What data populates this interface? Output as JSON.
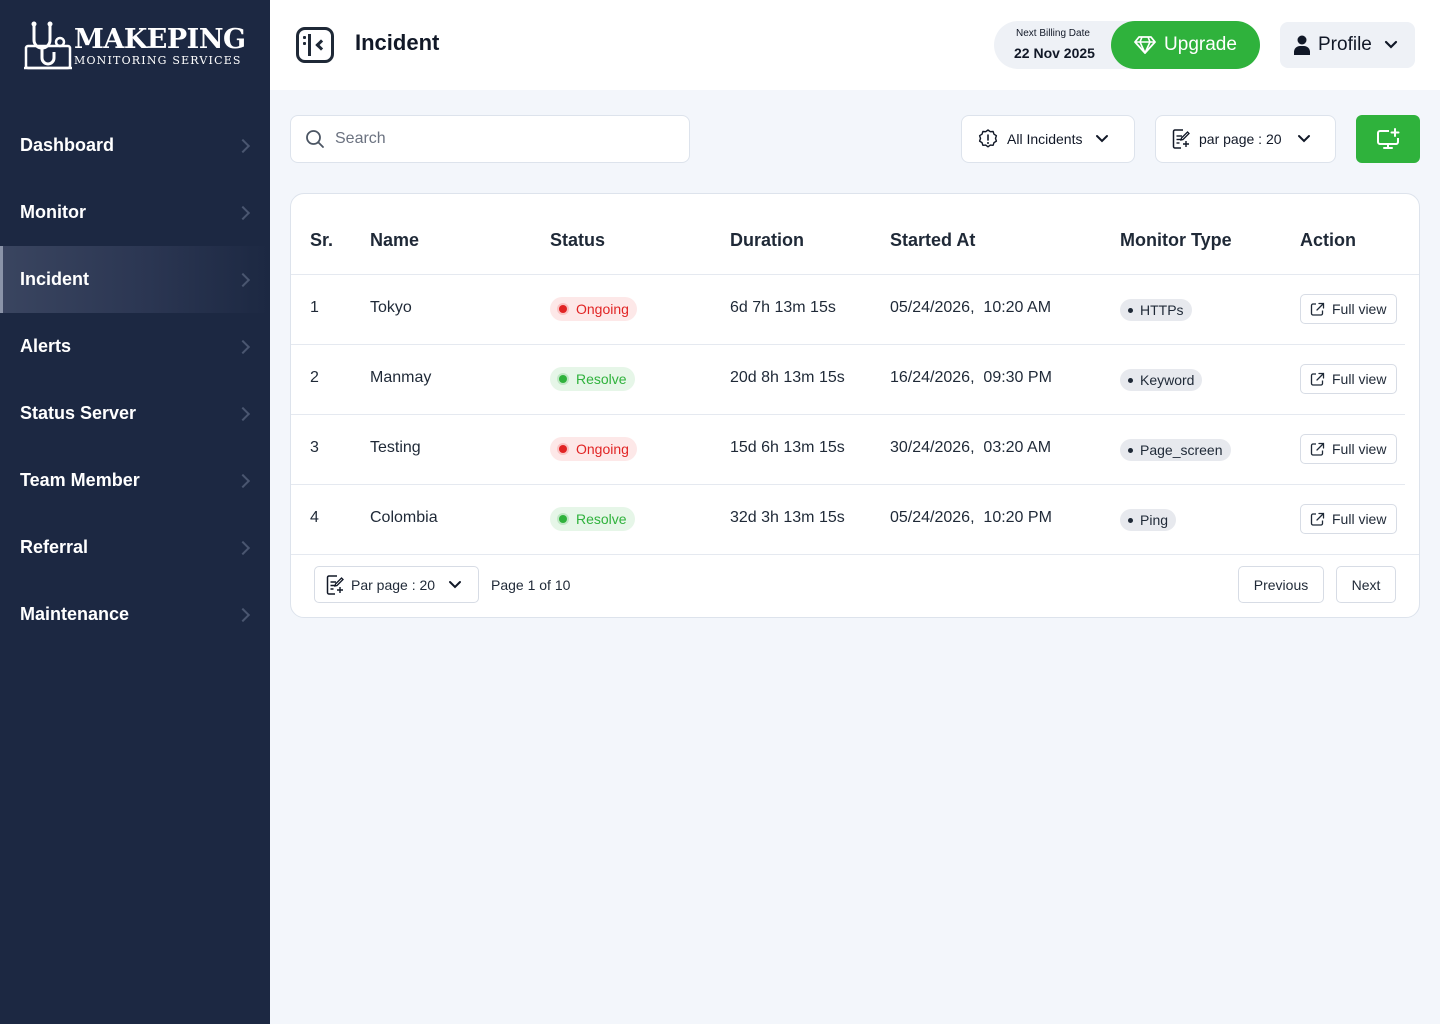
{
  "brand": {
    "name": "MAKEPING",
    "tagline": "MONITORING SERVICES"
  },
  "sidebar": {
    "items": [
      {
        "label": "Dashboard",
        "active": false
      },
      {
        "label": "Monitor",
        "active": false
      },
      {
        "label": "Incident",
        "active": true
      },
      {
        "label": "Alerts",
        "active": false
      },
      {
        "label": "Status Server",
        "active": false
      },
      {
        "label": "Team Member",
        "active": false
      },
      {
        "label": "Referral",
        "active": false
      },
      {
        "label": "Maintenance",
        "active": false
      }
    ]
  },
  "header": {
    "title": "Incident",
    "billing_label": "Next Billing Date",
    "billing_date": "22 Nov 2025",
    "upgrade_label": "Upgrade",
    "profile_label": "Profile"
  },
  "toolbar": {
    "search_placeholder": "Search",
    "filter_label": "All Incidents",
    "perpage_label": "par page : 20"
  },
  "table": {
    "headers": [
      "Sr.",
      "Name",
      "Status",
      "Duration",
      "Started At",
      "Monitor Type",
      "Action"
    ],
    "rows": [
      {
        "sr": "1",
        "name": "Tokyo",
        "status": "Ongoing",
        "duration": "6d 7h 13m 15s",
        "started": "05/24/2026,  10:20 AM",
        "type": "HTTPs",
        "action": "Full view"
      },
      {
        "sr": "2",
        "name": "Manmay",
        "status": "Resolve",
        "duration": "20d 8h 13m 15s",
        "started": "16/24/2026,  09:30 PM",
        "type": "Keyword",
        "action": "Full view"
      },
      {
        "sr": "3",
        "name": "Testing",
        "status": "Ongoing",
        "duration": "15d 6h 13m 15s",
        "started": "30/24/2026,  03:20 AM",
        "type": "Page_screen",
        "action": "Full view"
      },
      {
        "sr": "4",
        "name": "Colombia",
        "status": "Resolve",
        "duration": "32d 3h 13m 15s",
        "started": "05/24/2026,  10:20 PM",
        "type": "Ping",
        "action": "Full view"
      }
    ]
  },
  "pagination": {
    "perpage_label": "Par page : 20",
    "page_info": "Page 1 of 10",
    "previous_label": "Previous",
    "next_label": "Next"
  },
  "colors": {
    "sidebar_bg": "#1c2842",
    "accent_green": "#2fb23c",
    "ongoing_red": "#e12424"
  }
}
